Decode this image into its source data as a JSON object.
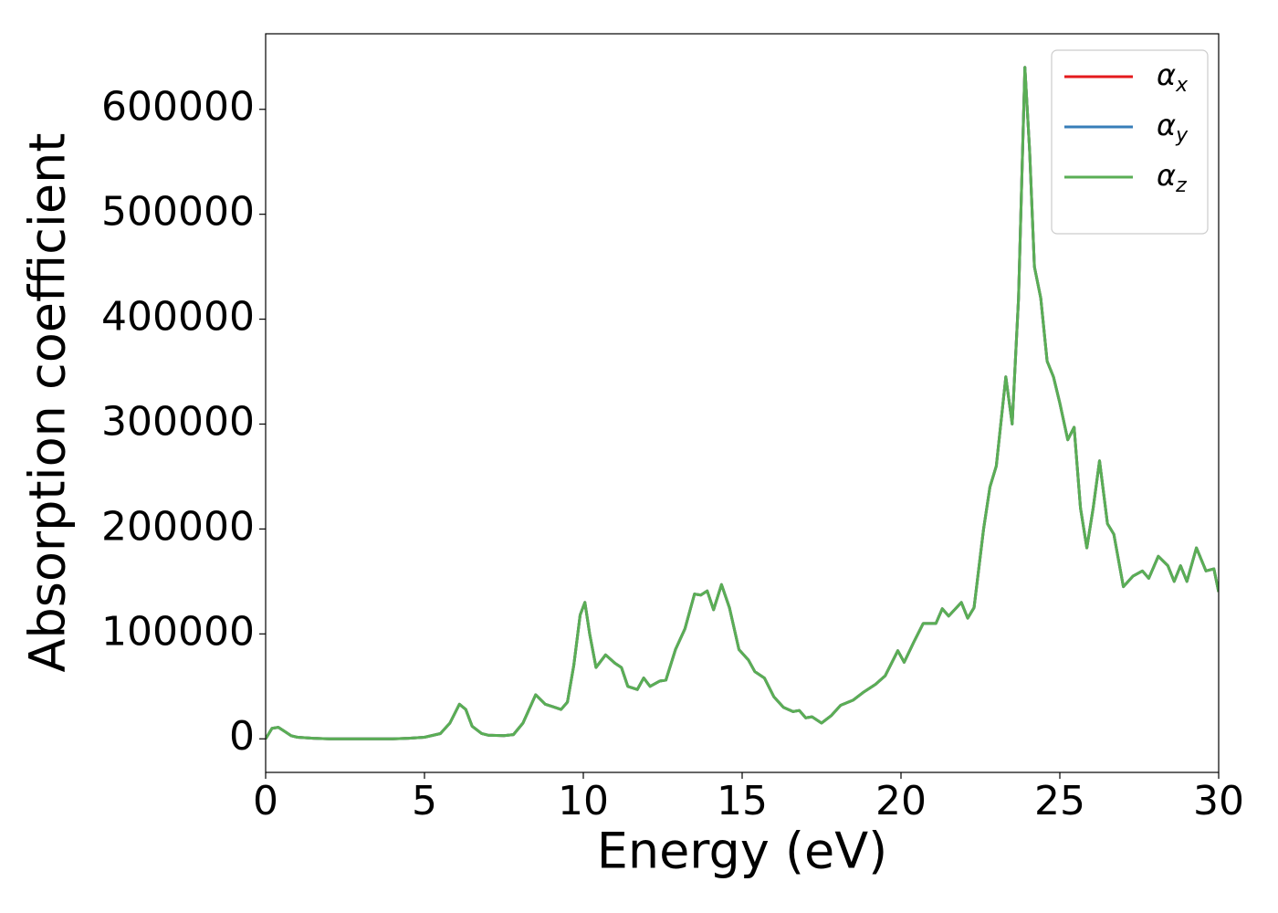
{
  "chart_data": {
    "type": "line",
    "xlabel": "Energy (eV)",
    "ylabel": "Absorption coefficient",
    "x": [
      0,
      0.2,
      0.4,
      0.6,
      0.8,
      1,
      1.5,
      2,
      3,
      4,
      4.5,
      5,
      5.5,
      5.8,
      6.1,
      6.3,
      6.5,
      6.8,
      7,
      7.5,
      7.8,
      8.1,
      8.5,
      8.8,
      9,
      9.3,
      9.5,
      9.7,
      9.9,
      10.05,
      10.2,
      10.4,
      10.7,
      11,
      11.2,
      11.4,
      11.7,
      11.9,
      12.1,
      12.4,
      12.6,
      12.9,
      13.2,
      13.5,
      13.7,
      13.9,
      14.1,
      14.35,
      14.6,
      14.9,
      15.2,
      15.4,
      15.7,
      16,
      16.3,
      16.6,
      16.8,
      17,
      17.2,
      17.5,
      17.8,
      18.1,
      18.5,
      18.8,
      19.2,
      19.5,
      19.9,
      20.1,
      20.4,
      20.7,
      21.1,
      21.3,
      21.5,
      21.9,
      22.1,
      22.3,
      22.6,
      22.8,
      23,
      23.3,
      23.5,
      23.7,
      23.9,
      24.05,
      24.2,
      24.4,
      24.6,
      24.8,
      25,
      25.25,
      25.45,
      25.65,
      25.85,
      26.05,
      26.25,
      26.5,
      26.7,
      27,
      27.3,
      27.6,
      27.8,
      28.1,
      28.4,
      28.6,
      28.8,
      29,
      29.3,
      29.6,
      29.85,
      30
    ],
    "series": [
      {
        "name": "αx",
        "color": "#e41a1c",
        "values": [
          0,
          10000,
          11000,
          7000,
          3000,
          1500,
          500,
          0,
          0,
          0,
          500,
          1500,
          5000,
          15000,
          33000,
          28000,
          12000,
          5000,
          3500,
          3000,
          4000,
          15000,
          42000,
          33000,
          31000,
          28000,
          35000,
          70000,
          118000,
          130000,
          100000,
          68000,
          80000,
          72000,
          68000,
          50000,
          47000,
          58000,
          50000,
          55000,
          56000,
          85000,
          105000,
          138000,
          137000,
          141000,
          123000,
          147000,
          125000,
          85000,
          75000,
          64000,
          58000,
          40000,
          30000,
          26000,
          27000,
          20000,
          21000,
          15000,
          22000,
          32000,
          37000,
          44000,
          52000,
          60000,
          84000,
          73000,
          92000,
          110000,
          110000,
          124000,
          117000,
          130000,
          115000,
          125000,
          200000,
          240000,
          260000,
          345000,
          300000,
          420000,
          640000,
          560000,
          450000,
          420000,
          360000,
          345000,
          320000,
          285000,
          297000,
          220000,
          182000,
          220000,
          265000,
          205000,
          195000,
          145000,
          155000,
          160000,
          153000,
          174000,
          165000,
          150000,
          165000,
          150000,
          182000,
          160000,
          162000,
          140000
        ]
      },
      {
        "name": "αy",
        "color": "#377eb8",
        "values": [
          0,
          10000,
          11000,
          7000,
          3000,
          1500,
          500,
          0,
          0,
          0,
          500,
          1500,
          5000,
          15000,
          33000,
          28000,
          12000,
          5000,
          3500,
          3000,
          4000,
          15000,
          42000,
          33000,
          31000,
          28000,
          35000,
          70000,
          118000,
          130000,
          100000,
          68000,
          80000,
          72000,
          68000,
          50000,
          47000,
          58000,
          50000,
          55000,
          56000,
          85000,
          105000,
          138000,
          137000,
          141000,
          123000,
          147000,
          125000,
          85000,
          75000,
          64000,
          58000,
          40000,
          30000,
          26000,
          27000,
          20000,
          21000,
          15000,
          22000,
          32000,
          37000,
          44000,
          52000,
          60000,
          84000,
          73000,
          92000,
          110000,
          110000,
          124000,
          117000,
          130000,
          115000,
          125000,
          200000,
          240000,
          260000,
          345000,
          300000,
          420000,
          640000,
          560000,
          450000,
          420000,
          360000,
          345000,
          320000,
          285000,
          297000,
          220000,
          182000,
          220000,
          265000,
          205000,
          195000,
          145000,
          155000,
          160000,
          153000,
          174000,
          165000,
          150000,
          165000,
          150000,
          182000,
          160000,
          162000,
          140000
        ]
      },
      {
        "name": "αz",
        "color": "#5aae55",
        "values": [
          0,
          10000,
          11000,
          7000,
          3000,
          1500,
          500,
          0,
          0,
          0,
          500,
          1500,
          5000,
          15000,
          33000,
          28000,
          12000,
          5000,
          3500,
          3000,
          4000,
          15000,
          42000,
          33000,
          31000,
          28000,
          35000,
          70000,
          118000,
          130000,
          100000,
          68000,
          80000,
          72000,
          68000,
          50000,
          47000,
          58000,
          50000,
          55000,
          56000,
          85000,
          105000,
          138000,
          137000,
          141000,
          123000,
          147000,
          125000,
          85000,
          75000,
          64000,
          58000,
          40000,
          30000,
          26000,
          27000,
          20000,
          21000,
          15000,
          22000,
          32000,
          37000,
          44000,
          52000,
          60000,
          84000,
          73000,
          92000,
          110000,
          110000,
          124000,
          117000,
          130000,
          115000,
          125000,
          200000,
          240000,
          260000,
          345000,
          300000,
          420000,
          640000,
          560000,
          450000,
          420000,
          360000,
          345000,
          320000,
          285000,
          297000,
          220000,
          182000,
          220000,
          265000,
          205000,
          195000,
          145000,
          155000,
          160000,
          153000,
          174000,
          165000,
          150000,
          165000,
          150000,
          182000,
          160000,
          162000,
          140000
        ]
      }
    ],
    "xlim": [
      0,
      30
    ],
    "xticks": [
      0,
      5,
      10,
      15,
      20,
      25,
      30
    ],
    "ylim": [
      -32000,
      672000
    ],
    "yticks": [
      0,
      100000,
      200000,
      300000,
      400000,
      500000,
      600000
    ],
    "grid": false,
    "legend": "upper right"
  }
}
